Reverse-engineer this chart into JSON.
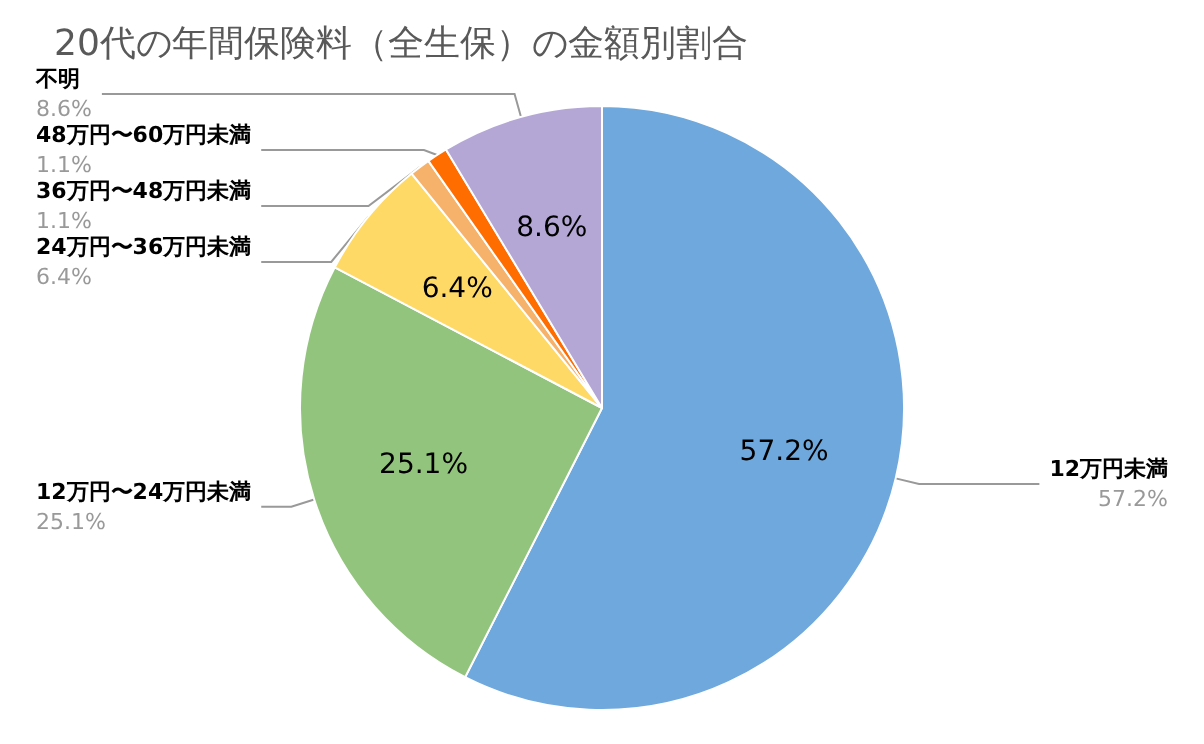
{
  "chart_data": {
    "type": "pie",
    "title": "20代の年間保険料（全生保）の金額別割合",
    "categories": [
      "12万円未満",
      "12万円〜24万円未満",
      "24万円〜36万円未満",
      "36万円〜48万円未満",
      "48万円〜60万円未満",
      "不明"
    ],
    "values": [
      57.2,
      25.1,
      6.4,
      1.1,
      1.1,
      8.6
    ],
    "value_labels": [
      "57.2%",
      "25.1%",
      "6.4%",
      "1.1%",
      "1.1%",
      "8.6%"
    ],
    "colors": [
      "#6fa8dc",
      "#93c47d",
      "#ffd966",
      "#f6b26b",
      "#ff6d01",
      "#b4a7d6"
    ],
    "legend": false
  }
}
